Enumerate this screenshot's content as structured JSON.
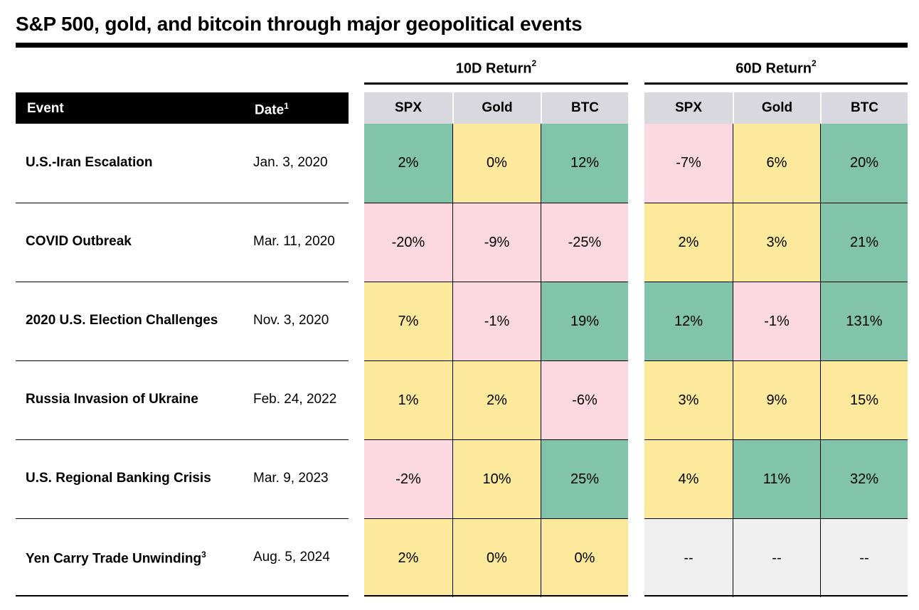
{
  "title": "S&P 500, gold, and bitcoin through major geopolitical events",
  "header": {
    "event_label": "Event",
    "date_label": "Date",
    "date_footnote": "1",
    "group_10d": "10D Return",
    "group_10d_footnote": "2",
    "group_60d": "60D Return",
    "group_60d_footnote": "2",
    "columns": [
      "SPX",
      "Gold",
      "BTC"
    ]
  },
  "colors": {
    "positive_high": "#82c4aa",
    "neutral": "#fde99b",
    "negative": "#fcd8e0",
    "no_data": "#f0f0f0",
    "header_gray": "#d9d8de"
  },
  "chart_data": {
    "type": "table",
    "rows": [
      {
        "event": "U.S.-Iran Escalation",
        "footnote": "",
        "date": "Jan. 3, 2020",
        "r10": [
          "2%",
          "0%",
          "12%"
        ],
        "r60": [
          "-7%",
          "6%",
          "20%"
        ],
        "c10": [
          "positive_high",
          "neutral",
          "positive_high"
        ],
        "c60": [
          "negative",
          "neutral",
          "positive_high"
        ]
      },
      {
        "event": "COVID Outbreak",
        "footnote": "",
        "date": "Mar. 11, 2020",
        "r10": [
          "-20%",
          "-9%",
          "-25%"
        ],
        "r60": [
          "2%",
          "3%",
          "21%"
        ],
        "c10": [
          "negative",
          "negative",
          "negative"
        ],
        "c60": [
          "neutral",
          "neutral",
          "positive_high"
        ]
      },
      {
        "event": "2020 U.S. Election Challenges",
        "footnote": "",
        "date": "Nov. 3, 2020",
        "r10": [
          "7%",
          "-1%",
          "19%"
        ],
        "r60": [
          "12%",
          "-1%",
          "131%"
        ],
        "c10": [
          "neutral",
          "negative",
          "positive_high"
        ],
        "c60": [
          "positive_high",
          "negative",
          "positive_high"
        ]
      },
      {
        "event": "Russia Invasion of Ukraine",
        "footnote": "",
        "date": "Feb. 24, 2022",
        "r10": [
          "1%",
          "2%",
          "-6%"
        ],
        "r60": [
          "3%",
          "9%",
          "15%"
        ],
        "c10": [
          "neutral",
          "neutral",
          "negative"
        ],
        "c60": [
          "neutral",
          "neutral",
          "neutral"
        ]
      },
      {
        "event": "U.S. Regional Banking Crisis",
        "footnote": "",
        "date": "Mar. 9, 2023",
        "r10": [
          "-2%",
          "10%",
          "25%"
        ],
        "r60": [
          "4%",
          "11%",
          "32%"
        ],
        "c10": [
          "negative",
          "neutral",
          "positive_high"
        ],
        "c60": [
          "neutral",
          "positive_high",
          "positive_high"
        ]
      },
      {
        "event": "Yen Carry Trade Unwinding",
        "footnote": "3",
        "date": "Aug. 5, 2024",
        "r10": [
          "2%",
          "0%",
          "0%"
        ],
        "r60": [
          "--",
          "--",
          "--"
        ],
        "c10": [
          "neutral",
          "neutral",
          "neutral"
        ],
        "c60": [
          "no_data",
          "no_data",
          "no_data"
        ]
      }
    ]
  }
}
